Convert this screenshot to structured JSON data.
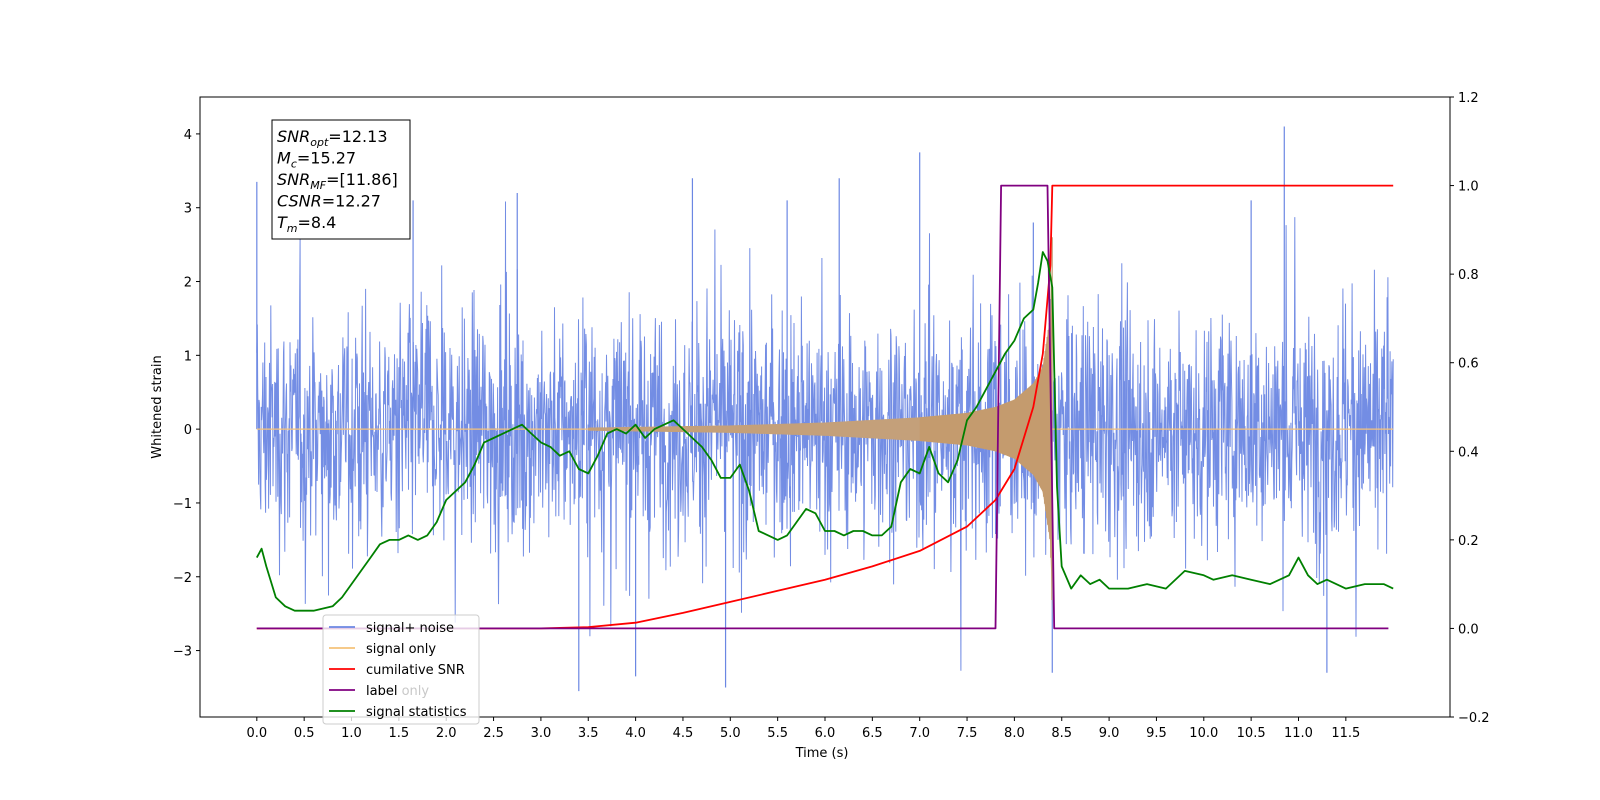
{
  "chart_data": {
    "type": "line",
    "xlabel": "Time (s)",
    "ylabel": "Whitened strain",
    "xlim": [
      -0.6,
      12.6
    ],
    "ylim": [
      -3.9,
      4.5
    ],
    "y2lim": [
      -0.2,
      1.2
    ],
    "x_ticks": [
      0.0,
      0.5,
      1.0,
      1.5,
      2.0,
      2.5,
      3.0,
      3.5,
      4.0,
      4.5,
      5.0,
      5.5,
      6.0,
      6.5,
      7.0,
      7.5,
      8.0,
      8.5,
      9.0,
      9.5,
      10.0,
      10.5,
      11.0,
      11.5
    ],
    "x_tick_labels": [
      "0.0",
      "0.5",
      "1.0",
      "1.5",
      "2.0",
      "2.5",
      "3.0",
      "3.5",
      "4.0",
      "4.5",
      "5.0",
      "5.5",
      "6.0",
      "6.5",
      "7.0",
      "7.5",
      "8.0",
      "8.5",
      "9.0",
      "9.5",
      "10.0",
      "10.5",
      "11.0",
      "11.5"
    ],
    "y_ticks": [
      4,
      3,
      2,
      1,
      0,
      -1,
      -2,
      -3
    ],
    "y_tick_labels": [
      "4",
      "3",
      "2",
      "1",
      "0",
      "−1",
      "−2",
      "−3"
    ],
    "y2_ticks": [
      1.2,
      1.0,
      0.8,
      0.6,
      0.4,
      0.2,
      0.0,
      -0.2
    ],
    "y2_tick_labels": [
      "1.2",
      "1.0",
      "0.8",
      "0.6",
      "0.4",
      "0.2",
      "0.0",
      "−0.2"
    ],
    "grid": false,
    "legend_placement": "lower-left",
    "series": [
      {
        "name": "signal+ noise",
        "color": "#6b87e3",
        "axis": "left",
        "x_range": [
          0.0,
          12.0
        ],
        "amplitude_band": [
          -2.0,
          2.0
        ],
        "peaks": [
          {
            "x": 0.0,
            "y": 3.35
          },
          {
            "x": 1.65,
            "y": 3.1
          },
          {
            "x": 2.75,
            "y": 3.2
          },
          {
            "x": 3.4,
            "y": -3.55
          },
          {
            "x": 4.0,
            "y": -3.35
          },
          {
            "x": 4.6,
            "y": 3.4
          },
          {
            "x": 4.95,
            "y": -3.5
          },
          {
            "x": 5.6,
            "y": 3.1
          },
          {
            "x": 6.15,
            "y": 3.4
          },
          {
            "x": 7.0,
            "y": 3.75
          },
          {
            "x": 8.2,
            "y": 2.8
          },
          {
            "x": 8.4,
            "y": -3.3
          },
          {
            "x": 10.5,
            "y": 3.1
          },
          {
            "x": 10.85,
            "y": 4.1
          },
          {
            "x": 11.3,
            "y": -3.3
          }
        ]
      },
      {
        "name": "signal only",
        "color": "#f5c27a",
        "axis": "left",
        "chirp_start": 3.5,
        "merger": 8.4,
        "envelope": [
          [
            3.5,
            0.02
          ],
          [
            5.0,
            0.05
          ],
          [
            6.0,
            0.09
          ],
          [
            7.0,
            0.16
          ],
          [
            7.5,
            0.22
          ],
          [
            7.8,
            0.3
          ],
          [
            8.0,
            0.4
          ],
          [
            8.2,
            0.62
          ],
          [
            8.3,
            0.85
          ],
          [
            8.38,
            1.55
          ],
          [
            8.4,
            2.6
          ]
        ]
      },
      {
        "name": "cumilative SNR",
        "color": "#ff0000",
        "axis": "right",
        "x": [
          0.0,
          3.0,
          3.5,
          4.0,
          4.5,
          5.0,
          5.5,
          6.0,
          6.5,
          7.0,
          7.5,
          7.8,
          8.0,
          8.2,
          8.3,
          8.38,
          8.4,
          12.0
        ],
        "y": [
          0.0,
          0.0,
          0.003,
          0.013,
          0.035,
          0.06,
          0.085,
          0.11,
          0.14,
          0.175,
          0.23,
          0.29,
          0.36,
          0.5,
          0.62,
          0.82,
          1.0,
          1.0
        ]
      },
      {
        "name": "label",
        "color": "#800080",
        "axis": "right",
        "x": [
          0.0,
          7.8,
          7.86,
          8.35,
          8.42,
          11.95
        ],
        "y": [
          0.0,
          0.0,
          1.0,
          1.0,
          0.0,
          0.0
        ]
      },
      {
        "name": "signal statistics",
        "color": "#008000",
        "axis": "right",
        "x": [
          0.0,
          0.05,
          0.1,
          0.2,
          0.3,
          0.4,
          0.5,
          0.6,
          0.7,
          0.8,
          0.9,
          1.0,
          1.1,
          1.2,
          1.3,
          1.4,
          1.5,
          1.6,
          1.7,
          1.8,
          1.9,
          2.0,
          2.1,
          2.2,
          2.3,
          2.4,
          2.5,
          2.6,
          2.7,
          2.8,
          2.9,
          3.0,
          3.1,
          3.2,
          3.3,
          3.4,
          3.5,
          3.6,
          3.7,
          3.8,
          3.9,
          4.0,
          4.1,
          4.2,
          4.3,
          4.4,
          4.5,
          4.6,
          4.7,
          4.8,
          4.9,
          5.0,
          5.1,
          5.2,
          5.3,
          5.4,
          5.5,
          5.6,
          5.7,
          5.8,
          5.9,
          6.0,
          6.1,
          6.2,
          6.3,
          6.4,
          6.5,
          6.6,
          6.7,
          6.8,
          6.9,
          7.0,
          7.1,
          7.2,
          7.3,
          7.4,
          7.5,
          7.6,
          7.7,
          7.8,
          7.9,
          8.0,
          8.1,
          8.2,
          8.25,
          8.3,
          8.35,
          8.4,
          8.45,
          8.5,
          8.6,
          8.7,
          8.8,
          8.9,
          9.0,
          9.2,
          9.4,
          9.6,
          9.8,
          10.0,
          10.1,
          10.3,
          10.5,
          10.7,
          10.9,
          11.0,
          11.1,
          11.2,
          11.3,
          11.5,
          11.7,
          11.9,
          12.0
        ],
        "y": [
          0.16,
          0.18,
          0.14,
          0.07,
          0.05,
          0.04,
          0.04,
          0.04,
          0.045,
          0.05,
          0.07,
          0.1,
          0.13,
          0.16,
          0.19,
          0.2,
          0.2,
          0.21,
          0.2,
          0.21,
          0.24,
          0.29,
          0.31,
          0.33,
          0.37,
          0.42,
          0.43,
          0.44,
          0.45,
          0.46,
          0.44,
          0.42,
          0.41,
          0.39,
          0.4,
          0.36,
          0.35,
          0.39,
          0.44,
          0.45,
          0.44,
          0.46,
          0.43,
          0.45,
          0.46,
          0.47,
          0.45,
          0.43,
          0.41,
          0.38,
          0.34,
          0.34,
          0.37,
          0.31,
          0.22,
          0.21,
          0.2,
          0.21,
          0.24,
          0.27,
          0.26,
          0.22,
          0.22,
          0.21,
          0.22,
          0.22,
          0.21,
          0.21,
          0.23,
          0.33,
          0.36,
          0.35,
          0.41,
          0.35,
          0.33,
          0.38,
          0.47,
          0.5,
          0.54,
          0.58,
          0.62,
          0.65,
          0.7,
          0.72,
          0.78,
          0.85,
          0.83,
          0.77,
          0.32,
          0.14,
          0.09,
          0.12,
          0.1,
          0.11,
          0.09,
          0.09,
          0.1,
          0.09,
          0.13,
          0.12,
          0.11,
          0.12,
          0.11,
          0.1,
          0.12,
          0.16,
          0.12,
          0.1,
          0.11,
          0.09,
          0.1,
          0.1,
          0.09
        ]
      }
    ],
    "legend": [
      "signal+ noise",
      "signal only",
      "cumilative SNR",
      "label",
      "signal statistics"
    ],
    "legend_overlap_text": "label only"
  },
  "info_box": {
    "lines": [
      {
        "var": "SNR",
        "sub": "opt",
        "value": "=12.13"
      },
      {
        "var": "M",
        "sub": "c",
        "value": "=15.27"
      },
      {
        "var": "SNR",
        "sub": "MF",
        "value": "=[11.86]"
      },
      {
        "var": "CSNR",
        "sub": "",
        "value": "=12.27"
      },
      {
        "var": "T",
        "sub": "m",
        "value": "=8.4"
      }
    ]
  }
}
